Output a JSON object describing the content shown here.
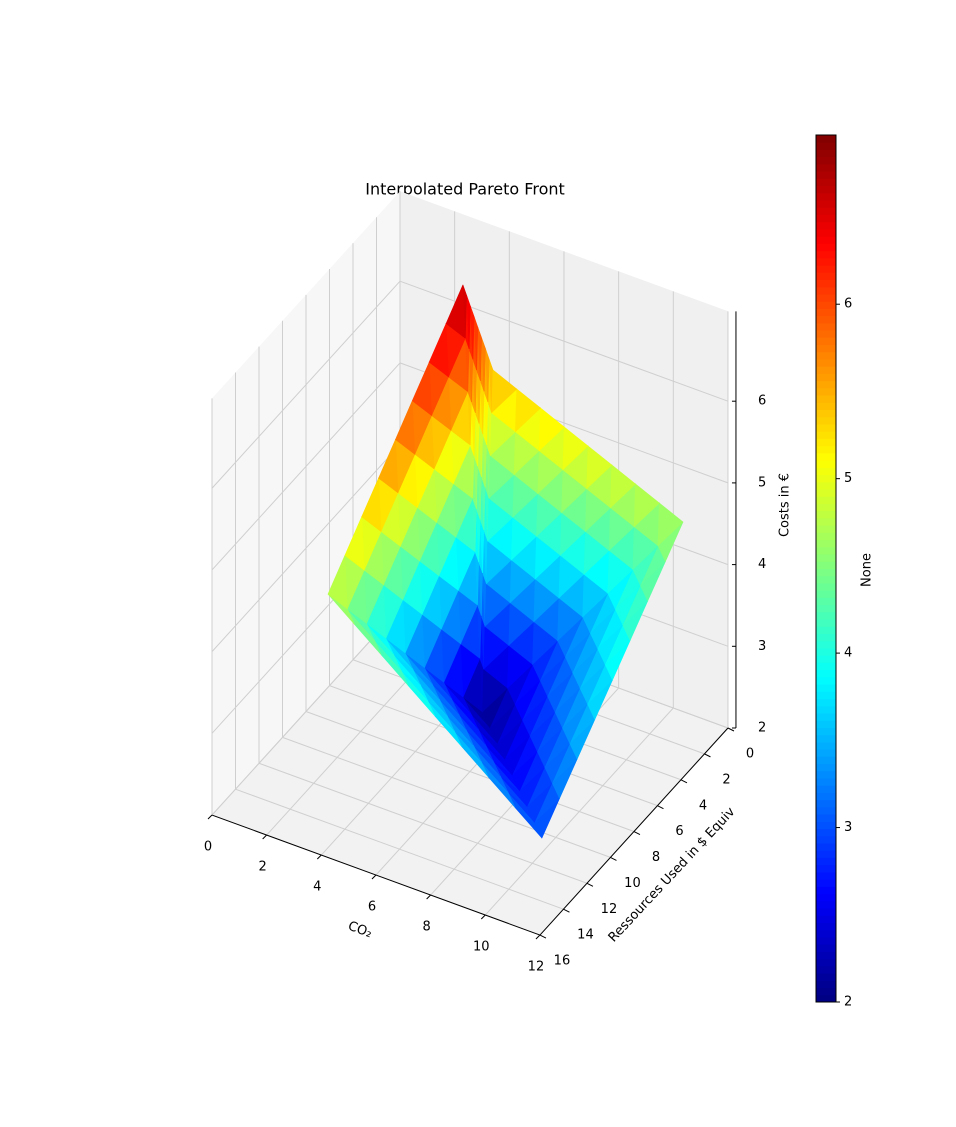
{
  "chart_data": {
    "type": "surface3d",
    "title": "Interpolated Pareto Front",
    "xlabel": "CO₂",
    "ylabel": "Ressources Used in $ Equiv",
    "zlabel": "Costs in €",
    "x": [
      3.45,
      3.75,
      3.38,
      4.85,
      11.13,
      11.67
    ],
    "y": [
      2.67,
      0.81,
      13.99,
      4.27,
      1.8,
      15.07
    ],
    "z": [
      6.8,
      5.5,
      4.8,
      2.0,
      4.7,
      3.0
    ],
    "xlim": [
      0,
      12
    ],
    "xticks": [
      0,
      2,
      4,
      6,
      8,
      10,
      12
    ],
    "ylim": [
      0,
      16
    ],
    "yticks": [
      0,
      2,
      4,
      6,
      8,
      10,
      12,
      14,
      16
    ],
    "zlim": [
      2,
      7.1
    ],
    "zticks": [
      2,
      3,
      4,
      5,
      6
    ],
    "colormap": "jet",
    "grid": true,
    "colorbar": {
      "label": "None",
      "lim": [
        2,
        6.97
      ],
      "ticks": [
        2,
        3,
        4,
        5,
        6
      ]
    }
  }
}
